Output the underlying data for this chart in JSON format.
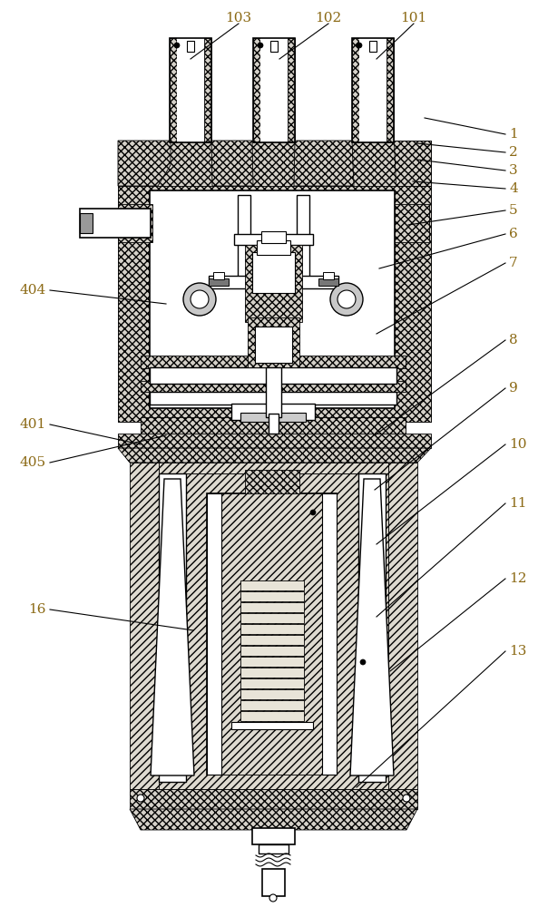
{
  "bg_color": "#ffffff",
  "label_color": "#8B6914",
  "figsize": [
    6.04,
    10.0
  ],
  "dpi": 100,
  "right_labels": [
    [
      "1",
      557,
      148,
      468,
      130
    ],
    [
      "2",
      557,
      168,
      460,
      158
    ],
    [
      "3",
      557,
      188,
      460,
      176
    ],
    [
      "4",
      557,
      208,
      455,
      200
    ],
    [
      "5",
      557,
      232,
      450,
      248
    ],
    [
      "6",
      557,
      258,
      418,
      296
    ],
    [
      "7",
      557,
      290,
      415,
      368
    ],
    [
      "8",
      557,
      375,
      413,
      480
    ],
    [
      "9",
      557,
      428,
      413,
      540
    ],
    [
      "10",
      557,
      490,
      415,
      600
    ],
    [
      "11",
      557,
      555,
      415,
      680
    ],
    [
      "12",
      557,
      638,
      430,
      740
    ],
    [
      "13",
      557,
      718,
      393,
      868
    ]
  ],
  "left_labels": [
    [
      "404",
      55,
      320,
      183,
      335
    ],
    [
      "401",
      55,
      468,
      155,
      490
    ],
    [
      "405",
      55,
      510,
      183,
      480
    ],
    [
      "16",
      55,
      672,
      213,
      695
    ]
  ],
  "top_labels": [
    [
      "101",
      456,
      20,
      415,
      65
    ],
    [
      "102",
      362,
      20,
      308,
      65
    ],
    [
      "103",
      263,
      20,
      210,
      65
    ]
  ]
}
